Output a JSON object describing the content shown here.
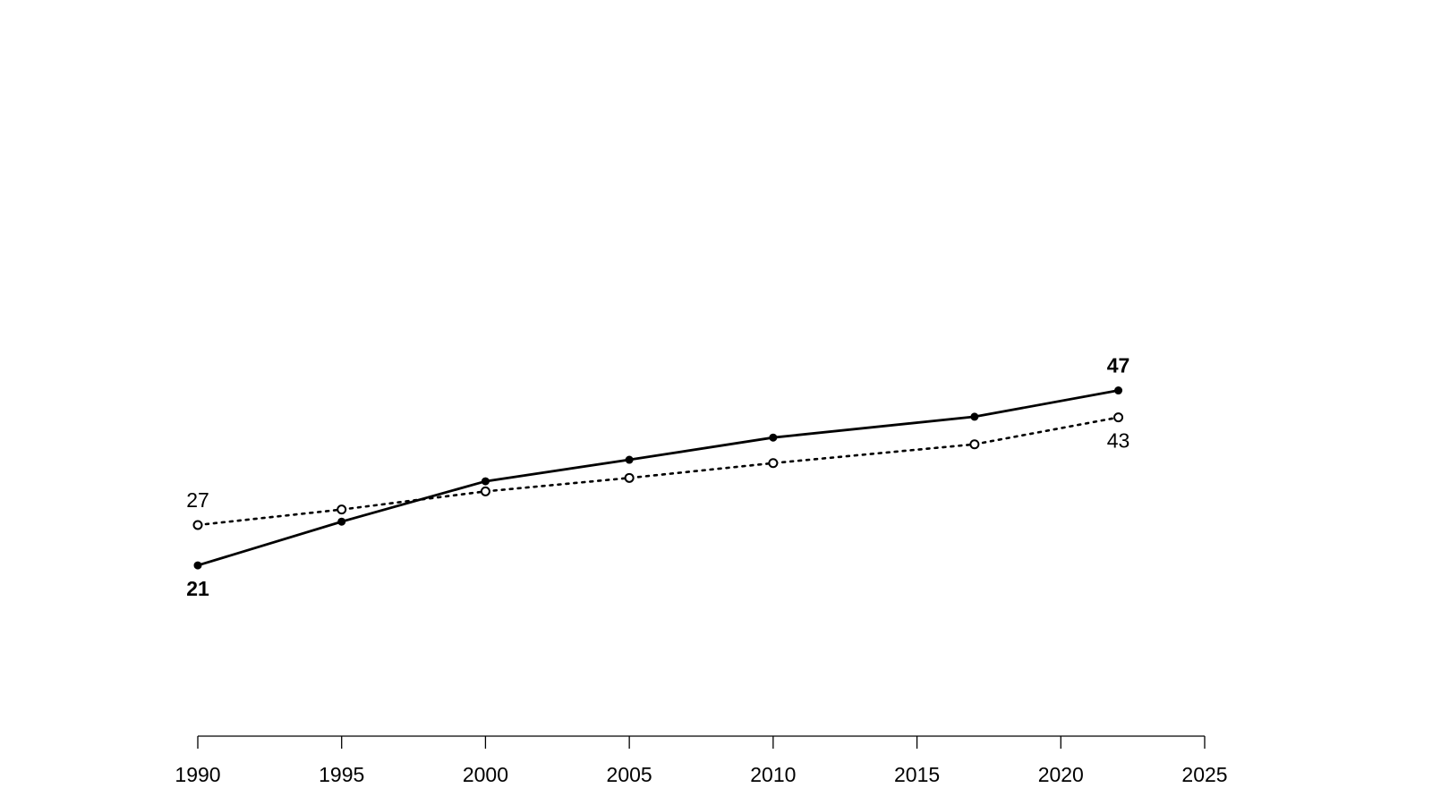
{
  "chart_data": {
    "type": "line",
    "x": [
      1990,
      1995,
      2000,
      2005,
      2010,
      2017,
      2022
    ],
    "series": [
      {
        "color": "#000000",
        "dash": "solid",
        "marker": "filled",
        "font_weight": "bold",
        "values": [
          21,
          27.5,
          33.5,
          36.7,
          40.0,
          43.1,
          47
        ]
      },
      {
        "color": "#000000",
        "dash": "dotted",
        "marker": "open",
        "font_weight": "normal",
        "values": [
          27,
          29.3,
          32.0,
          34.0,
          36.2,
          39.0,
          43
        ]
      }
    ],
    "xlim": [
      1990,
      2025
    ],
    "xticks": [
      1990,
      1995,
      2000,
      2005,
      2010,
      2015,
      2020,
      2025
    ],
    "ylim": [
      0,
      100
    ]
  }
}
